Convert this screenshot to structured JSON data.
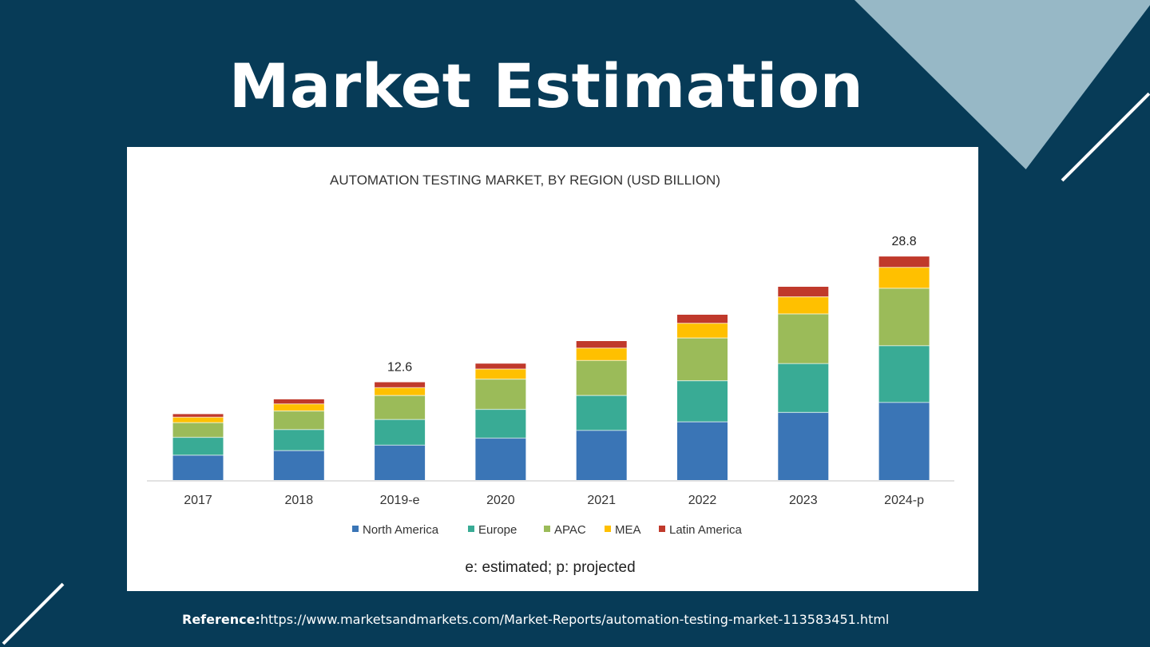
{
  "page": {
    "title": "Market Estimation",
    "reference_label": "Reference:",
    "reference_url": "https://www.marketsandmarkets.com/Market-Reports/automation-testing-market-113583451.html"
  },
  "colors": {
    "background": "#073b57",
    "accent": "#97b8c6"
  },
  "chart_data": {
    "type": "bar",
    "stacked": true,
    "title": "AUTOMATION TESTING MARKET, BY REGION (USD BILLION)",
    "categories": [
      "2017",
      "2018",
      "2019-e",
      "2020",
      "2021",
      "2022",
      "2023",
      "2024-p"
    ],
    "series": [
      {
        "name": "North America",
        "color": "#3a75b6",
        "values": [
          3.2,
          3.8,
          4.5,
          5.4,
          6.4,
          7.5,
          8.7,
          10.0
        ]
      },
      {
        "name": "Europe",
        "color": "#39ab95",
        "values": [
          2.3,
          2.7,
          3.3,
          3.7,
          4.5,
          5.3,
          6.3,
          7.3
        ]
      },
      {
        "name": "APAC",
        "color": "#9bbb59",
        "values": [
          1.9,
          2.4,
          3.1,
          3.9,
          4.5,
          5.5,
          6.4,
          7.4
        ]
      },
      {
        "name": "MEA",
        "color": "#ffc000",
        "values": [
          0.7,
          0.9,
          1.0,
          1.3,
          1.6,
          1.9,
          2.2,
          2.7
        ]
      },
      {
        "name": "Latin America",
        "color": "#c0392b",
        "values": [
          0.4,
          0.6,
          0.7,
          0.7,
          0.9,
          1.1,
          1.3,
          1.4
        ]
      }
    ],
    "data_labels": [
      {
        "category": "2019-e",
        "text": "12.6"
      },
      {
        "category": "2024-p",
        "text": "28.8"
      }
    ],
    "ylim": [
      0,
      30
    ],
    "xlabel": "",
    "ylabel": "",
    "footnote": "e: estimated; p: projected",
    "legend_position": "bottom"
  }
}
